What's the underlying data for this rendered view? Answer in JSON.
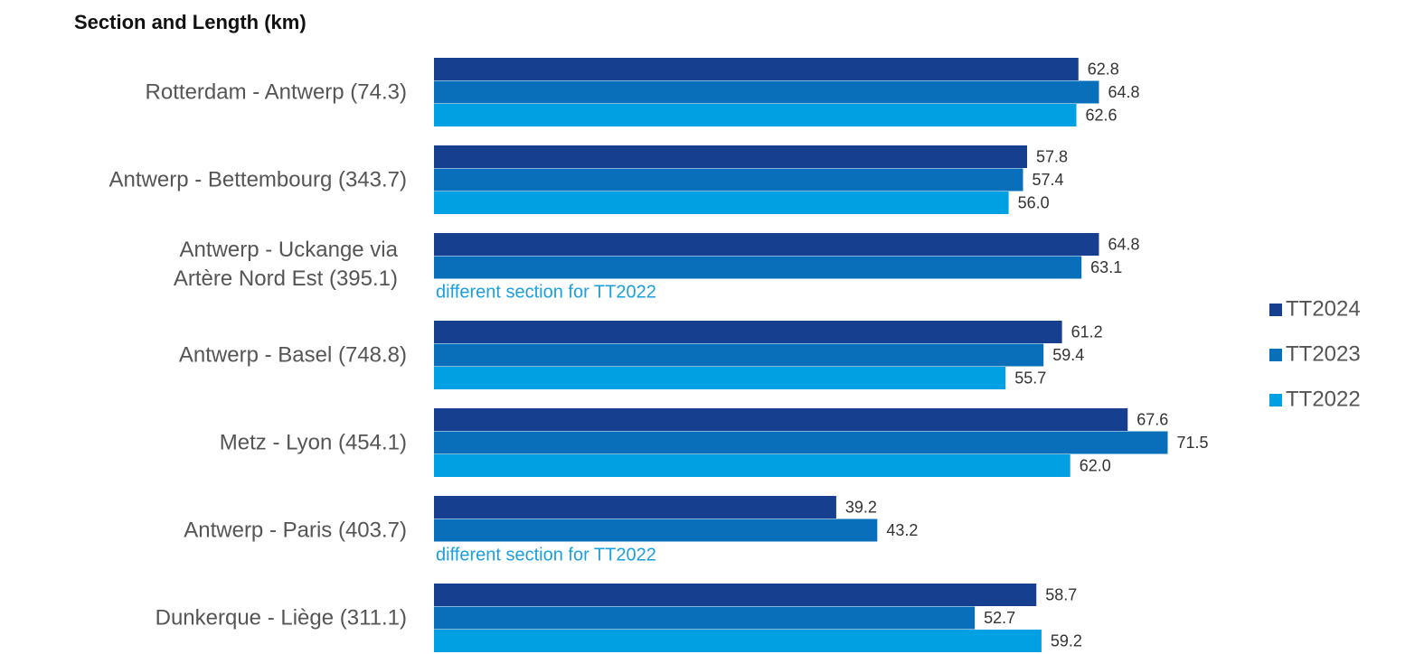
{
  "chart_data": {
    "type": "bar",
    "orientation": "horizontal",
    "title": "Section and Length (km)",
    "categories": [
      "Rotterdam - Antwerp (74.3)",
      "Antwerp - Bettembourg (343.7)",
      "Antwerp - Uckange via\nArtère Nord Est (395.1)",
      "Antwerp - Basel (748.8)",
      "Metz - Lyon (454.1)",
      "Antwerp - Paris (403.7)",
      "Dunkerque - Liège (311.1)"
    ],
    "series": [
      {
        "name": "TT2024",
        "color": "#173f8f",
        "values": [
          62.8,
          57.8,
          64.8,
          61.2,
          67.6,
          39.2,
          58.7
        ],
        "value_labels": [
          "62.8",
          "57.8",
          "64.8",
          "61.2",
          "67.6",
          "39.2",
          "58.7"
        ]
      },
      {
        "name": "TT2023",
        "color": "#0a6fba",
        "values": [
          64.8,
          57.4,
          63.1,
          59.4,
          71.5,
          43.2,
          52.7
        ],
        "value_labels": [
          "64.8",
          "57.4",
          "63.1",
          "59.4",
          "71.5",
          "43.2",
          "52.7"
        ]
      },
      {
        "name": "TT2022",
        "color": "#00a0e3",
        "values": [
          62.6,
          56.0,
          null,
          55.7,
          62.0,
          null,
          59.2
        ],
        "value_labels": [
          "62.6",
          "56.0",
          null,
          "55.7",
          "62.0",
          null,
          "59.2"
        ]
      }
    ],
    "annotations": [
      null,
      null,
      "different section for TT2022",
      null,
      null,
      "different section for TT2022",
      null
    ],
    "legend": "right"
  }
}
